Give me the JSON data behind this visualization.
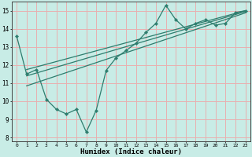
{
  "xlabel": "Humidex (Indice chaleur)",
  "bg_color": "#c8ece6",
  "grid_color": "#e8b0b0",
  "line_color": "#2e7d6e",
  "xlim": [
    -0.5,
    23.5
  ],
  "ylim": [
    7.8,
    15.5
  ],
  "xticks": [
    0,
    1,
    2,
    3,
    4,
    5,
    6,
    7,
    8,
    9,
    10,
    11,
    12,
    13,
    14,
    15,
    16,
    17,
    18,
    19,
    20,
    21,
    22,
    23
  ],
  "yticks": [
    8,
    9,
    10,
    11,
    12,
    13,
    14,
    15
  ],
  "line1_x": [
    0,
    1,
    2,
    3,
    4,
    5,
    6,
    7,
    8,
    9,
    10,
    11,
    12,
    13,
    14,
    15,
    16,
    17,
    18,
    19,
    20,
    21,
    22,
    23
  ],
  "line1_y": [
    13.6,
    11.5,
    11.75,
    10.1,
    9.55,
    9.3,
    9.55,
    8.3,
    9.5,
    11.7,
    12.4,
    12.8,
    13.2,
    13.8,
    14.3,
    15.3,
    14.5,
    14.0,
    14.3,
    14.5,
    14.2,
    14.3,
    14.9,
    15.0
  ],
  "line2_x": [
    1,
    23
  ],
  "line2_y": [
    11.75,
    15.0
  ],
  "line3_x": [
    1,
    23
  ],
  "line3_y": [
    11.4,
    14.95
  ],
  "line4_x": [
    1,
    23
  ],
  "line4_y": [
    10.85,
    14.88
  ]
}
